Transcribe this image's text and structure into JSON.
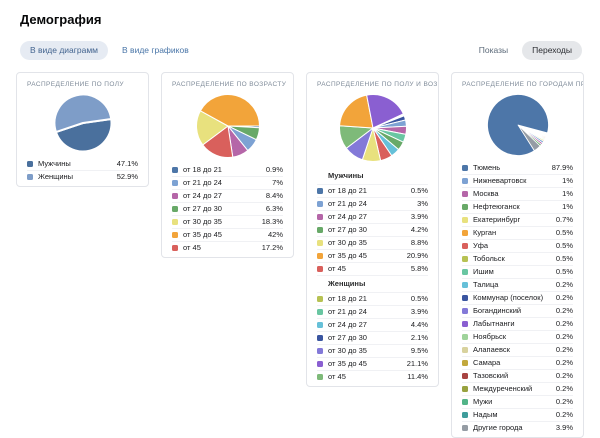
{
  "page": {
    "title": "Демография"
  },
  "toolbar": {
    "view_toggle": [
      {
        "label": "В виде диаграмм",
        "active": true
      },
      {
        "label": "В виде графиков",
        "active": false
      }
    ],
    "metric_toggle": [
      {
        "label": "Показы",
        "active": false
      },
      {
        "label": "Переходы",
        "active": true
      }
    ]
  },
  "panels": [
    {
      "id": "gender",
      "title": "РАСПРЕДЕЛЕНИЕ ПО ПОЛУ",
      "pie": {
        "size": 58,
        "start_deg": -8,
        "stroke": 2
      },
      "items": [
        {
          "label": "Мужчины",
          "value": 47.1,
          "text": "47.1%",
          "color": "#4a709d"
        },
        {
          "label": "Женщины",
          "value": 52.9,
          "text": "52.9%",
          "color": "#7e9dc8"
        }
      ]
    },
    {
      "id": "age",
      "title": "РАСПРЕДЕЛЕНИЕ ПО ВОЗРАСТУ",
      "pie": {
        "size": 64,
        "start_deg": 0,
        "stroke": 1
      },
      "items": [
        {
          "label": "от 18 до 21",
          "value": 0.9,
          "text": "0.9%",
          "color": "#4d76a8"
        },
        {
          "label": "от 21 до 24",
          "value": 7,
          "text": "7%",
          "color": "#7da2d3"
        },
        {
          "label": "от 24 до 27",
          "value": 8.4,
          "text": "8.4%",
          "color": "#b566a8"
        },
        {
          "label": "от 27 до 30",
          "value": 6.3,
          "text": "6.3%",
          "color": "#68a968"
        },
        {
          "label": "от 30 до 35",
          "value": 18.3,
          "text": "18.3%",
          "color": "#e8e17e"
        },
        {
          "label": "от 35 до 45",
          "value": 42,
          "text": "42%",
          "color": "#f2a43a"
        },
        {
          "label": "от 45",
          "value": 17.2,
          "text": "17.2%",
          "color": "#d9605c"
        }
      ]
    },
    {
      "id": "gender-age",
      "title": "РАСПРЕДЕЛЕНИЕ ПО ПОЛУ И ВОЗРАСТУ",
      "pie": {
        "size": 68,
        "start_deg": -25,
        "stroke": 1
      },
      "groups": [
        {
          "name": "Мужчины",
          "items": [
            {
              "label": "от 18 до 21",
              "value": 0.5,
              "text": "0.5%",
              "color": "#4d76a8"
            },
            {
              "label": "от 21 до 24",
              "value": 3,
              "text": "3%",
              "color": "#7da2d3"
            },
            {
              "label": "от 24 до 27",
              "value": 3.9,
              "text": "3.9%",
              "color": "#b566a8"
            },
            {
              "label": "от 27 до 30",
              "value": 4.2,
              "text": "4.2%",
              "color": "#68a968"
            },
            {
              "label": "от 30 до 35",
              "value": 8.8,
              "text": "8.8%",
              "color": "#e8e17e"
            },
            {
              "label": "от 35 до 45",
              "value": 20.9,
              "text": "20.9%",
              "color": "#f2a43a"
            },
            {
              "label": "от 45",
              "value": 5.8,
              "text": "5.8%",
              "color": "#d9605c"
            }
          ]
        },
        {
          "name": "Женщины",
          "items": [
            {
              "label": "от 18 до 21",
              "value": 0.5,
              "text": "0.5%",
              "color": "#b7c253"
            },
            {
              "label": "от 21 до 24",
              "value": 3.9,
              "text": "3.9%",
              "color": "#69c6a2"
            },
            {
              "label": "от 24 до 27",
              "value": 4.4,
              "text": "4.4%",
              "color": "#66c0d8"
            },
            {
              "label": "от 27 до 30",
              "value": 2.1,
              "text": "2.1%",
              "color": "#3a55a0"
            },
            {
              "label": "от 30 до 35",
              "value": 9.5,
              "text": "9.5%",
              "color": "#8379d8"
            },
            {
              "label": "от 35 до 45",
              "value": 21.1,
              "text": "21.1%",
              "color": "#8a5fd1"
            },
            {
              "label": "от 45",
              "value": 11.4,
              "text": "11.4%",
              "color": "#7eba79"
            }
          ]
        }
      ]
    },
    {
      "id": "cities",
      "title": "РАСПРЕДЕЛЕНИЕ ПО ГОРОДАМ ПРОФИЛЯ",
      "pie": {
        "size": 62,
        "start_deg": 15,
        "stroke": 0.8
      },
      "items": [
        {
          "label": "Тюмень",
          "value": 87.9,
          "text": "87.9%",
          "color": "#4d76a8"
        },
        {
          "label": "Нижневартовск",
          "value": 1,
          "text": "1%",
          "color": "#7da2d3"
        },
        {
          "label": "Москва",
          "value": 1,
          "text": "1%",
          "color": "#b566a8"
        },
        {
          "label": "Нефтеюганск",
          "value": 1,
          "text": "1%",
          "color": "#68a968"
        },
        {
          "label": "Екатеринбург",
          "value": 0.7,
          "text": "0.7%",
          "color": "#e8e17e"
        },
        {
          "label": "Курган",
          "value": 0.5,
          "text": "0.5%",
          "color": "#f2a43a"
        },
        {
          "label": "Уфа",
          "value": 0.5,
          "text": "0.5%",
          "color": "#d9605c"
        },
        {
          "label": "Тобольск",
          "value": 0.5,
          "text": "0.5%",
          "color": "#b7c253"
        },
        {
          "label": "Ишим",
          "value": 0.5,
          "text": "0.5%",
          "color": "#69c6a2"
        },
        {
          "label": "Талица",
          "value": 0.2,
          "text": "0.2%",
          "color": "#66c0d8"
        },
        {
          "label": "Коммунар (поселок)",
          "value": 0.2,
          "text": "0.2%",
          "color": "#3a55a0"
        },
        {
          "label": "Богандинский",
          "value": 0.2,
          "text": "0.2%",
          "color": "#8379d8"
        },
        {
          "label": "Лабытнанги",
          "value": 0.2,
          "text": "0.2%",
          "color": "#8a5fd1"
        },
        {
          "label": "Ноябрьск",
          "value": 0.2,
          "text": "0.2%",
          "color": "#9fd39b"
        },
        {
          "label": "Алапаевск",
          "value": 0.2,
          "text": "0.2%",
          "color": "#d8d29e"
        },
        {
          "label": "Самара",
          "value": 0.2,
          "text": "0.2%",
          "color": "#c2a83d"
        },
        {
          "label": "Тазовский",
          "value": 0.2,
          "text": "0.2%",
          "color": "#a84442"
        },
        {
          "label": "Междуреченский",
          "value": 0.2,
          "text": "0.2%",
          "color": "#98a23f"
        },
        {
          "label": "Мужи",
          "value": 0.2,
          "text": "0.2%",
          "color": "#52b488"
        },
        {
          "label": "Надым",
          "value": 0.2,
          "text": "0.2%",
          "color": "#3f9d9b"
        },
        {
          "label": "Другие города",
          "value": 3.9,
          "text": "3.9%",
          "color": "#959ca4"
        }
      ]
    }
  ],
  "chart_data": [
    {
      "type": "pie",
      "title": "Распределение по полу",
      "labels": [
        "Мужчины",
        "Женщины"
      ],
      "values": [
        47.1,
        52.9
      ]
    },
    {
      "type": "pie",
      "title": "Распределение по возрасту",
      "labels": [
        "от 18 до 21",
        "от 21 до 24",
        "от 24 до 27",
        "от 27 до 30",
        "от 30 до 35",
        "от 35 до 45",
        "от 45"
      ],
      "values": [
        0.9,
        7,
        8.4,
        6.3,
        18.3,
        42,
        17.2
      ]
    },
    {
      "type": "pie",
      "title": "Распределение по полу и возрасту",
      "labels": [
        "от 18 до 21",
        "от 21 до 24",
        "от 24 до 27",
        "от 27 до 30",
        "от 30 до 35",
        "от 35 до 45",
        "от 45"
      ],
      "series": [
        {
          "name": "Мужчины",
          "values": [
            0.5,
            3,
            3.9,
            4.2,
            8.8,
            20.9,
            5.8
          ]
        },
        {
          "name": "Женщины",
          "values": [
            0.5,
            3.9,
            4.4,
            2.1,
            9.5,
            21.1,
            11.4
          ]
        }
      ]
    },
    {
      "type": "pie",
      "title": "Распределение по городам профиля",
      "labels": [
        "Тюмень",
        "Нижневартовск",
        "Москва",
        "Нефтеюганск",
        "Екатеринбург",
        "Курган",
        "Уфа",
        "Тобольск",
        "Ишим",
        "Талица",
        "Коммунар (поселок)",
        "Богандинский",
        "Лабытнанги",
        "Ноябрьск",
        "Алапаевск",
        "Самара",
        "Тазовский",
        "Междуреченский",
        "Мужи",
        "Надым",
        "Другие города"
      ],
      "values": [
        87.9,
        1,
        1,
        1,
        0.7,
        0.5,
        0.5,
        0.5,
        0.5,
        0.2,
        0.2,
        0.2,
        0.2,
        0.2,
        0.2,
        0.2,
        0.2,
        0.2,
        0.2,
        0.2,
        3.9
      ]
    }
  ]
}
